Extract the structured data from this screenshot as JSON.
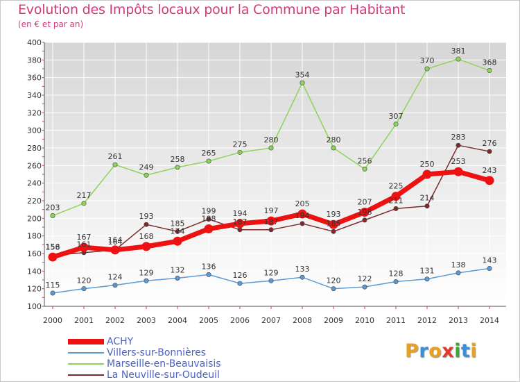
{
  "title": "Evolution des Impôts locaux pour la Commune par Habitant",
  "subtitle": "(en € et par an)",
  "logo_text": "Proxiti",
  "logo_colors": [
    "#e8a020",
    "#3a8fd8",
    "#e8a020",
    "#e23a2a",
    "#3aa83a",
    "#3a8fd8",
    "#e8a020"
  ],
  "chart_data": {
    "type": "line",
    "title": "Evolution des Impôts locaux pour la Commune par Habitant",
    "subtitle": "(en € et par an)",
    "xlabel": "",
    "ylabel": "",
    "x": [
      "2000",
      "2001",
      "2002",
      "2003",
      "2004",
      "2005",
      "2006",
      "2007",
      "2008",
      "2009",
      "2010",
      "2011",
      "2012",
      "2013",
      "2014"
    ],
    "ylim": [
      100,
      400
    ],
    "yticks": [
      100,
      120,
      140,
      160,
      180,
      200,
      220,
      240,
      260,
      280,
      300,
      320,
      340,
      360,
      380,
      400
    ],
    "grid": true,
    "legend_position": "bottom-left",
    "series": [
      {
        "name": "Marseille-en-Beauvaisis",
        "color": "#8cd45a",
        "values": [
          203,
          217,
          261,
          249,
          258,
          265,
          275,
          280,
          354,
          280,
          256,
          307,
          370,
          381,
          368
        ]
      },
      {
        "name": "Villers-sur-Bonnières",
        "color": "#5b9bd5",
        "values": [
          115,
          120,
          124,
          129,
          132,
          136,
          126,
          129,
          133,
          120,
          122,
          128,
          131,
          138,
          143
        ]
      },
      {
        "name": "La Neuville-sur-Oudeuil",
        "color": "#7b2a2a",
        "values": [
          158,
          161,
          164,
          193,
          185,
          199,
          187,
          187,
          194,
          185,
          198,
          211,
          214,
          283,
          276
        ],
        "labels": [
          "158",
          "161",
          "164",
          "193",
          "185",
          "199",
          "187",
          "187",
          "194",
          "185",
          "198",
          "211",
          "214",
          "283",
          "276"
        ]
      },
      {
        "name": "ACHY",
        "color": "#ee1111",
        "values": [
          156,
          167,
          164,
          168,
          174,
          188,
          194,
          197,
          205,
          193,
          207,
          225,
          250,
          253,
          243
        ]
      }
    ]
  }
}
